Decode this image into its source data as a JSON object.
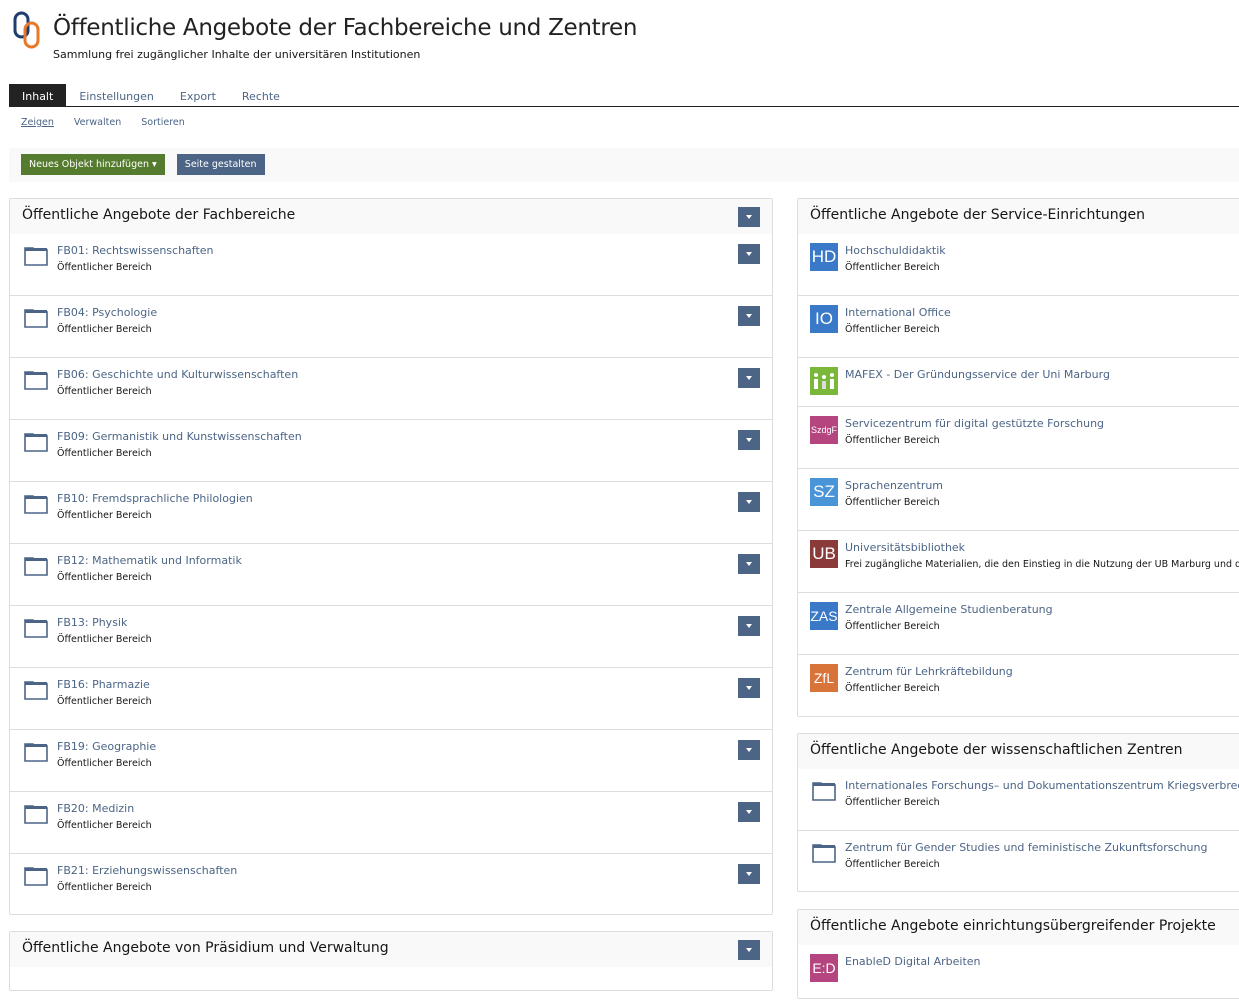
{
  "header": {
    "title": "Öffentliche Angebote der Fachbereiche und Zentren",
    "subtitle": "Sammlung frei zugänglicher Inhalte der universitären Institutionen"
  },
  "tabs": [
    {
      "label": "Inhalt"
    },
    {
      "label": "Einstellungen"
    },
    {
      "label": "Export"
    },
    {
      "label": "Rechte"
    }
  ],
  "subtabs": [
    {
      "label": "Zeigen"
    },
    {
      "label": "Verwalten"
    },
    {
      "label": "Sortieren"
    }
  ],
  "toolbar": {
    "add_label": "Neues Objekt hinzufügen",
    "design_label": "Seite gestalten"
  },
  "colors": {
    "accent": "#4c6586",
    "green": "#557b2e"
  },
  "fachbereiche": {
    "title": "Öffentliche Angebote der Fachbereiche",
    "items": [
      {
        "title": "FB01: Rechtswissenschaften",
        "desc": "Öffentlicher Bereich"
      },
      {
        "title": "FB04: Psychologie",
        "desc": "Öffentlicher Bereich"
      },
      {
        "title": "FB06: Geschichte und Kulturwissenschaften",
        "desc": "Öffentlicher Bereich"
      },
      {
        "title": "FB09: Germanistik und Kunstwissenschaften",
        "desc": "Öffentlicher Bereich"
      },
      {
        "title": "FB10: Fremdsprachliche Philologien",
        "desc": "Öffentlicher Bereich"
      },
      {
        "title": "FB12: Mathematik und Informatik",
        "desc": "Öffentlicher Bereich"
      },
      {
        "title": "FB13: Physik",
        "desc": "Öffentlicher Bereich"
      },
      {
        "title": "FB16: Pharmazie",
        "desc": "Öffentlicher Bereich"
      },
      {
        "title": "FB19: Geographie",
        "desc": "Öffentlicher Bereich"
      },
      {
        "title": "FB20: Medizin",
        "desc": "Öffentlicher Bereich"
      },
      {
        "title": "FB21: Erziehungswissenschaften",
        "desc": "Öffentlicher Bereich"
      }
    ]
  },
  "praesidium": {
    "title": "Öffentliche Angebote von Präsidium und Verwaltung"
  },
  "service": {
    "title": "Öffentliche Angebote der Service-Einrichtungen",
    "items": [
      {
        "tile": "HD",
        "color": "#3a78c8",
        "title": "Hochschuldidaktik",
        "desc": "Öffentlicher Bereich"
      },
      {
        "tile": "IO",
        "color": "#3a78c8",
        "title": "International Office",
        "desc": "Öffentlicher Bereich"
      },
      {
        "tile": "",
        "icon": "mafex-logo",
        "color": "#7ab73a",
        "title": "MAFEX - Der Gründungsservice der Uni Marburg",
        "desc": ""
      },
      {
        "tile": "SzdgF",
        "color": "#b5457f",
        "title": "Servicezentrum für digital gestützte Forschung",
        "desc": "Öffentlicher Bereich"
      },
      {
        "tile": "SZ",
        "color": "#4a94d8",
        "title": "Sprachenzentrum",
        "desc": "Öffentlicher Bereich"
      },
      {
        "tile": "UB",
        "color": "#8b3a3a",
        "title": "Universitätsbibliothek",
        "desc": "Frei zugängliche Materialien, die den Einstieg in die Nutzung der UB Marburg und die Arb"
      },
      {
        "tile": "ZAS",
        "color": "#3a78c8",
        "title": "Zentrale Allgemeine Studienberatung",
        "desc": "Öffentlicher Bereich"
      },
      {
        "tile": "ZfL",
        "color": "#d8733a",
        "title": "Zentrum für Lehrkräftebildung",
        "desc": "Öffentlicher Bereich"
      }
    ]
  },
  "zentren": {
    "title": "Öffentliche Angebote der wissenschaftlichen Zentren",
    "items": [
      {
        "title": "Internationales Forschungs– und Dokumentationszentrum Kriegsverbreche",
        "desc": "Öffentlicher Bereich"
      },
      {
        "title": "Zentrum für Gender Studies und feministische Zukunftsforschung",
        "desc": "Öffentlicher Bereich"
      }
    ]
  },
  "projekte": {
    "title": "Öffentliche Angebote einrichtungsübergreifender Projekte",
    "items": [
      {
        "tile": "E:D",
        "color": "#b5457f",
        "title": "EnableD Digital Arbeiten"
      }
    ]
  }
}
